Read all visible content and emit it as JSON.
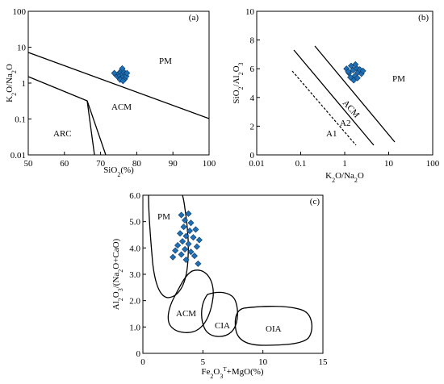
{
  "chart_data": [
    {
      "panel": "(a)",
      "type": "scatter",
      "xlabel": "SiO2(%)",
      "ylabel": "K2O/Na2O",
      "xscale": "linear",
      "yscale": "log",
      "xlim": [
        50,
        100
      ],
      "ylim": [
        0.01,
        100
      ],
      "xticks": [
        "50",
        "60",
        "70",
        "80",
        "90",
        "100"
      ],
      "yticks": [
        "0.01",
        "0.1",
        "1",
        "10",
        "100"
      ],
      "fields": [
        "PM",
        "ACM",
        "ARC"
      ],
      "points": [
        {
          "x": 74.2,
          "y": 1.7
        },
        {
          "x": 74.6,
          "y": 1.55
        },
        {
          "x": 75.0,
          "y": 1.85
        },
        {
          "x": 75.3,
          "y": 1.6
        },
        {
          "x": 75.5,
          "y": 2.05
        },
        {
          "x": 75.7,
          "y": 1.4
        },
        {
          "x": 75.9,
          "y": 2.3
        },
        {
          "x": 76.1,
          "y": 1.75
        },
        {
          "x": 76.3,
          "y": 1.5
        },
        {
          "x": 76.5,
          "y": 2.0
        },
        {
          "x": 76.7,
          "y": 1.3
        },
        {
          "x": 76.9,
          "y": 1.8
        },
        {
          "x": 77.1,
          "y": 1.55
        },
        {
          "x": 75.4,
          "y": 1.25
        },
        {
          "x": 76.2,
          "y": 1.15
        },
        {
          "x": 77.3,
          "y": 1.9
        },
        {
          "x": 76.0,
          "y": 2.55
        },
        {
          "x": 73.8,
          "y": 1.9
        }
      ]
    },
    {
      "panel": "(b)",
      "type": "scatter",
      "xlabel": "K2O/Na2O",
      "ylabel": "SiO2/Al2O3",
      "xscale": "log",
      "yscale": "linear",
      "xlim": [
        0.01,
        100
      ],
      "ylim": [
        0,
        10
      ],
      "xticks": [
        "0.01",
        "0.1",
        "1",
        "10",
        "100"
      ],
      "yticks": [
        "0",
        "2",
        "4",
        "6",
        "8",
        "10"
      ],
      "fields": [
        "PM",
        "ACM",
        "A2",
        "A1"
      ],
      "points": [
        {
          "x": 1.1,
          "y": 6.0
        },
        {
          "x": 1.25,
          "y": 5.7
        },
        {
          "x": 1.4,
          "y": 6.2
        },
        {
          "x": 1.55,
          "y": 5.9
        },
        {
          "x": 1.7,
          "y": 5.5
        },
        {
          "x": 1.85,
          "y": 6.05
        },
        {
          "x": 2.0,
          "y": 5.75
        },
        {
          "x": 2.2,
          "y": 5.95
        },
        {
          "x": 1.6,
          "y": 5.2
        },
        {
          "x": 1.35,
          "y": 5.4
        },
        {
          "x": 2.4,
          "y": 5.65
        },
        {
          "x": 1.95,
          "y": 5.35
        },
        {
          "x": 1.2,
          "y": 5.8
        },
        {
          "x": 2.6,
          "y": 5.85
        },
        {
          "x": 1.75,
          "y": 6.3
        }
      ]
    },
    {
      "panel": "(c)",
      "type": "scatter",
      "xlabel": "Fe2O3T+MgO(%)",
      "ylabel": "Al2O3/(Na2O+CaO)",
      "xscale": "linear",
      "yscale": "linear",
      "xlim": [
        0,
        15
      ],
      "ylim": [
        0,
        6
      ],
      "xticks": [
        "0",
        "5",
        "10",
        "15"
      ],
      "yticks": [
        "0",
        "1.0",
        "2.0",
        "3.0",
        "4.0",
        "5.0",
        "6.0"
      ],
      "fields": [
        "PM",
        "ACM",
        "CIA",
        "OIA"
      ],
      "points": [
        {
          "x": 3.2,
          "y": 5.25
        },
        {
          "x": 3.8,
          "y": 5.3
        },
        {
          "x": 3.5,
          "y": 5.05
        },
        {
          "x": 4.0,
          "y": 4.95
        },
        {
          "x": 3.4,
          "y": 4.8
        },
        {
          "x": 3.9,
          "y": 4.65
        },
        {
          "x": 4.4,
          "y": 4.7
        },
        {
          "x": 3.1,
          "y": 4.55
        },
        {
          "x": 3.6,
          "y": 4.45
        },
        {
          "x": 4.2,
          "y": 4.4
        },
        {
          "x": 4.7,
          "y": 4.3
        },
        {
          "x": 3.3,
          "y": 4.25
        },
        {
          "x": 3.8,
          "y": 4.15
        },
        {
          "x": 2.9,
          "y": 4.1
        },
        {
          "x": 4.5,
          "y": 4.05
        },
        {
          "x": 3.5,
          "y": 3.95
        },
        {
          "x": 4.0,
          "y": 3.85
        },
        {
          "x": 2.7,
          "y": 3.9
        },
        {
          "x": 3.2,
          "y": 3.75
        },
        {
          "x": 4.3,
          "y": 3.7
        },
        {
          "x": 2.5,
          "y": 3.65
        },
        {
          "x": 3.6,
          "y": 3.55
        },
        {
          "x": 4.6,
          "y": 3.4
        }
      ]
    }
  ]
}
